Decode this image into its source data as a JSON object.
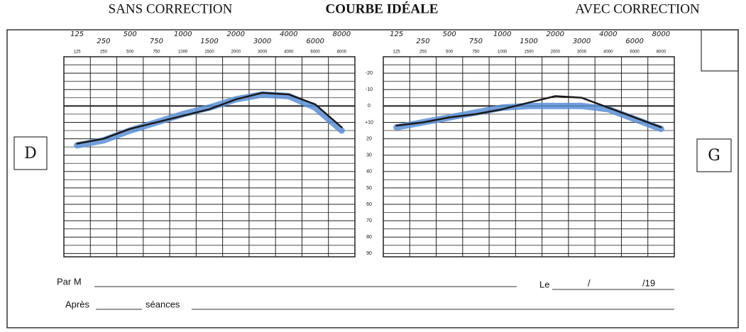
{
  "header": {
    "left": "SANS CORRECTION",
    "center": "COURBE IDÉALE",
    "right": "AVEC CORRECTION"
  },
  "side_labels": {
    "left": "D",
    "right": "G"
  },
  "footer": {
    "par": "Par M",
    "le": "Le",
    "sep": "/",
    "year": "/19",
    "apres": "Après",
    "seances": "séances"
  },
  "chart_data": [
    {
      "type": "line",
      "categories": [
        "125",
        "250",
        "500",
        "750",
        "1000",
        "1500",
        "2000",
        "3000",
        "4000",
        "6000",
        "8000"
      ],
      "handwritten_labels": [
        "125",
        "250",
        "500",
        "750",
        "1000",
        "1500",
        "2000",
        "3000",
        "4000",
        "6000",
        "8000"
      ],
      "ylim": [
        -30,
        92
      ],
      "yticks": [
        -20,
        -10,
        0,
        {
          "value": 10,
          "label": "+10"
        },
        20,
        30,
        40,
        50,
        60,
        70,
        80,
        90
      ],
      "series": [
        {
          "color": "#5b8fd6",
          "values": [
            24,
            21,
            15,
            10,
            5,
            1,
            -4,
            -7,
            -6,
            1,
            15
          ]
        },
        {
          "color": "#1a1a1a",
          "values": [
            23,
            20,
            14,
            10,
            6,
            2,
            -4,
            -8,
            -7,
            -1,
            13
          ]
        }
      ]
    },
    {
      "type": "line",
      "categories": [
        "125",
        "250",
        "500",
        "750",
        "1000",
        "1500",
        "2000",
        "3000",
        "4000",
        "6000",
        "8000"
      ],
      "handwritten_labels": [
        "125",
        "250",
        "500",
        "750",
        "1000",
        "1500",
        "2000",
        "3000",
        "4000",
        "6000",
        "8000"
      ],
      "ylim": [
        -30,
        92
      ],
      "series": [
        {
          "color": "#5b8fd6",
          "values": [
            13,
            10,
            7,
            4,
            1,
            0,
            0,
            0,
            2,
            8,
            14
          ]
        },
        {
          "color": "#1a1a1a",
          "values": [
            12,
            10,
            7,
            5,
            2,
            -2,
            -6,
            -5,
            1,
            7,
            13
          ]
        }
      ]
    }
  ]
}
